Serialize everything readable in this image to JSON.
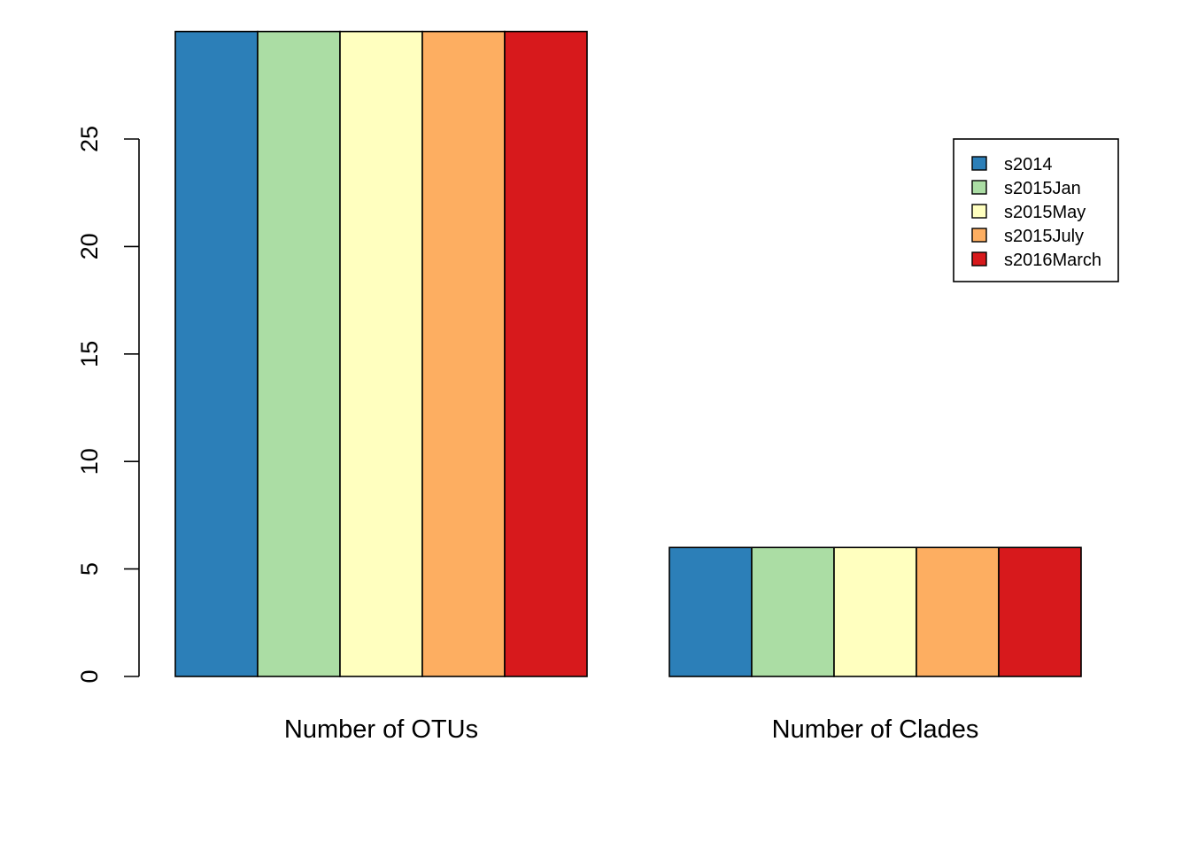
{
  "chart_data": {
    "type": "bar",
    "grouped": true,
    "categories": [
      "Number of OTUs",
      "Number of Clades"
    ],
    "series": [
      {
        "name": "s2014",
        "color": "#2C7FB8",
        "values": [
          30,
          6
        ]
      },
      {
        "name": "s2015Jan",
        "color": "#ABDDA4",
        "values": [
          30,
          6
        ]
      },
      {
        "name": "s2015May",
        "color": "#FFFFBF",
        "values": [
          30,
          6
        ]
      },
      {
        "name": "s2015July",
        "color": "#FDAE61",
        "values": [
          30,
          6
        ]
      },
      {
        "name": "s2016March",
        "color": "#D7191C",
        "values": [
          30,
          6
        ]
      }
    ],
    "y_ticks": [
      "0",
      "5",
      "10",
      "15",
      "20",
      "25"
    ],
    "ylim": [
      0,
      30
    ],
    "legend_position": "top-right",
    "grid": false
  }
}
